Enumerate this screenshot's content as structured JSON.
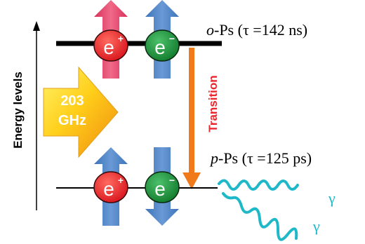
{
  "axis": {
    "label": "Energy levels"
  },
  "levels": {
    "upper": {
      "prefix": "o",
      "suffix": "-Ps (",
      "tau_symbol": "τ",
      "lifetime": " =142 ns)"
    },
    "lower": {
      "prefix": "p",
      "suffix": "-Ps (",
      "tau_symbol": "τ",
      "lifetime": " =125 ps)"
    }
  },
  "particles": {
    "positron_label": "e",
    "positron_sign": "+",
    "electron_label": "e",
    "electron_sign": "−"
  },
  "excitation": {
    "line1": "203",
    "line2": "GHz"
  },
  "transition": {
    "label": "Transition"
  },
  "photons": {
    "gamma1": "γ",
    "gamma2": "γ"
  },
  "colors": {
    "positron": "#e8262c",
    "electron": "#1f8a3a",
    "spin_up_pink": "#e8476a",
    "spin_blue": "#4f86c6",
    "transition_arrow": "#f07a1a",
    "transition_text": "#e8262c",
    "gamma": "#1fb8c8",
    "level_line": "#000000"
  }
}
